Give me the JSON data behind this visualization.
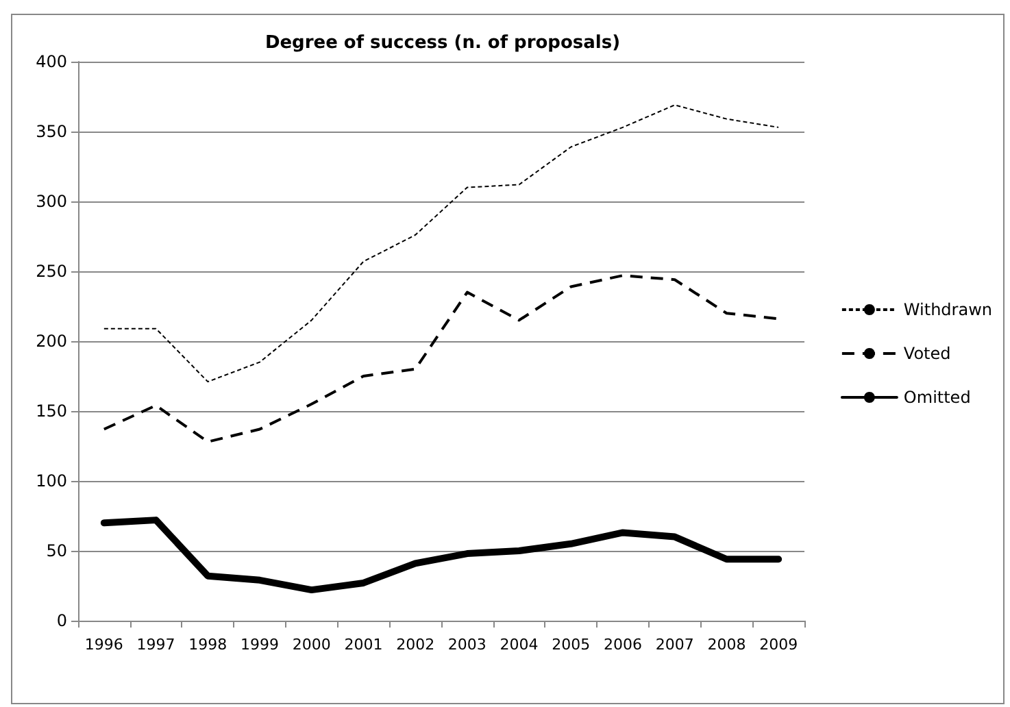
{
  "chart_data": {
    "type": "line",
    "title": "Degree of success (n. of proposals)",
    "categories": [
      "1996",
      "1997",
      "1998",
      "1999",
      "2000",
      "2001",
      "2002",
      "2003",
      "2004",
      "2005",
      "2006",
      "2007",
      "2008",
      "2009"
    ],
    "series": [
      {
        "name": "Withdrawn",
        "color": "#000000",
        "line_style": "dotted",
        "values": [
          209,
          209,
          171,
          185,
          215,
          257,
          276,
          310,
          312,
          339,
          353,
          369,
          359,
          353
        ]
      },
      {
        "name": "Voted",
        "color": "#000000",
        "line_style": "dashed",
        "values": [
          137,
          154,
          128,
          137,
          155,
          175,
          180,
          235,
          215,
          239,
          247,
          244,
          220,
          216
        ]
      },
      {
        "name": "Omitted",
        "color": "#000000",
        "line_style": "solid",
        "values": [
          70,
          72,
          32,
          29,
          22,
          27,
          41,
          48,
          50,
          55,
          63,
          60,
          44,
          44
        ]
      }
    ],
    "ylim": [
      0,
      400
    ],
    "yticks": [
      0,
      50,
      100,
      150,
      200,
      250,
      300,
      350,
      400
    ],
    "grid": "y",
    "legend": "right",
    "marker": "none"
  }
}
